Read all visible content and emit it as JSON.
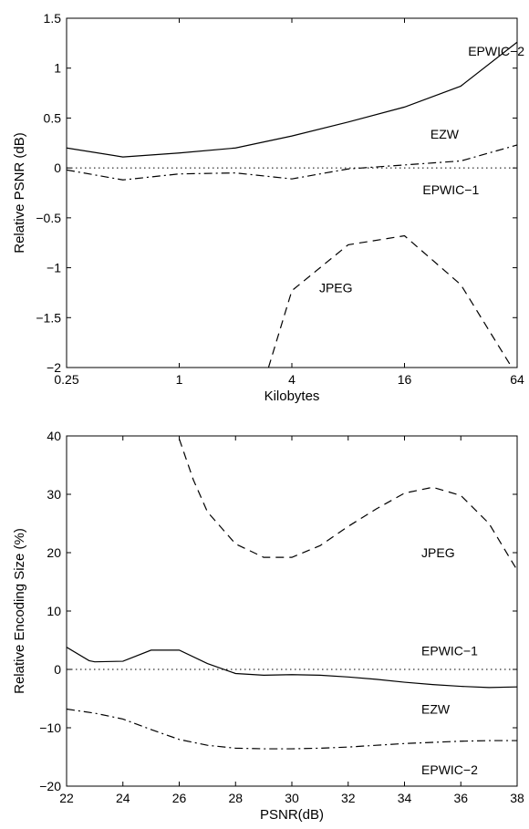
{
  "chart_data": [
    {
      "type": "line",
      "title": "",
      "xlabel": "Kilobytes",
      "ylabel": "Relative PSNR (dB)",
      "x_scale": "log2",
      "xlim": [
        0.25,
        64
      ],
      "ylim": [
        -2,
        1.5
      ],
      "x_ticks": [
        0.25,
        1,
        4,
        16,
        64
      ],
      "x_tick_labels": [
        "0.25",
        "1",
        "4",
        "16",
        "64"
      ],
      "y_ticks": [
        -2,
        -1.5,
        -1,
        -0.5,
        0,
        0.5,
        1,
        1.5
      ],
      "y_tick_labels": [
        "−2",
        "−1.5",
        "−1",
        "−0.5",
        "0",
        "0.5",
        "1",
        "1.5"
      ],
      "grid": false,
      "series": [
        {
          "name": "EPWIC−2",
          "style": "solid",
          "x": [
            0.25,
            0.5,
            1,
            2,
            4,
            8,
            16,
            32,
            64
          ],
          "y": [
            0.2,
            0.11,
            0.15,
            0.2,
            0.32,
            0.46,
            0.61,
            0.82,
            1.26
          ]
        },
        {
          "name": "EZW",
          "style": "dashdot",
          "x": [
            0.25,
            0.5,
            1,
            2,
            4,
            8,
            16,
            32,
            64
          ],
          "y": [
            -0.02,
            -0.12,
            -0.06,
            -0.05,
            -0.11,
            -0.01,
            0.03,
            0.07,
            0.23
          ]
        },
        {
          "name": "EPWIC−1",
          "style": "dotted",
          "x": [
            0.25,
            64
          ],
          "y": [
            0,
            0
          ]
        },
        {
          "name": "JPEG",
          "style": "dashed",
          "x": [
            3,
            4,
            8,
            16,
            32,
            60
          ],
          "y": [
            -2.0,
            -1.23,
            -0.77,
            -0.68,
            -1.17,
            -2.0
          ]
        }
      ],
      "series_labels": [
        {
          "text": "EPWIC−2",
          "x": 35,
          "y": 1.17
        },
        {
          "text": "EZW",
          "x": 22,
          "y": 0.34
        },
        {
          "text": "EPWIC−1",
          "x": 20,
          "y": -0.22
        },
        {
          "text": "JPEG",
          "x": 5.6,
          "y": -1.2
        }
      ]
    },
    {
      "type": "line",
      "title": "",
      "xlabel": "PSNR(dB)",
      "ylabel": "Relative Encoding Size (%)",
      "xlim": [
        22,
        38
      ],
      "ylim": [
        -20,
        40
      ],
      "x_ticks": [
        22,
        24,
        26,
        28,
        30,
        32,
        34,
        36,
        38
      ],
      "x_tick_labels": [
        "22",
        "24",
        "26",
        "28",
        "30",
        "32",
        "34",
        "36",
        "38"
      ],
      "y_ticks": [
        -20,
        -10,
        0,
        10,
        20,
        30,
        40
      ],
      "y_tick_labels": [
        "−20",
        "−10",
        "0",
        "10",
        "20",
        "30",
        "40"
      ],
      "grid": false,
      "series": [
        {
          "name": "EZW",
          "style": "solid",
          "x": [
            22,
            22.8,
            23,
            24,
            25,
            26,
            27,
            28,
            29,
            30,
            31,
            32,
            33,
            34,
            35,
            36,
            37,
            38
          ],
          "y": [
            3.8,
            1.5,
            1.3,
            1.4,
            3.3,
            3.3,
            1.0,
            -0.7,
            -1.0,
            -0.9,
            -1.0,
            -1.3,
            -1.7,
            -2.2,
            -2.6,
            -2.9,
            -3.1,
            -3.0
          ]
        },
        {
          "name": "EPWIC−1",
          "style": "dotted",
          "x": [
            22,
            38
          ],
          "y": [
            0,
            0
          ]
        },
        {
          "name": "EPWIC−2",
          "style": "dashdot",
          "x": [
            22,
            23,
            24,
            25,
            26,
            27,
            28,
            29,
            30,
            31,
            32,
            33,
            34,
            35,
            36,
            37,
            38
          ],
          "y": [
            -6.8,
            -7.5,
            -8.5,
            -10.3,
            -12.0,
            -13.0,
            -13.5,
            -13.6,
            -13.6,
            -13.5,
            -13.3,
            -13.0,
            -12.7,
            -12.5,
            -12.3,
            -12.2,
            -12.2
          ]
        },
        {
          "name": "JPEG",
          "style": "dashed",
          "x": [
            26,
            26.5,
            27,
            28,
            29,
            30,
            31,
            32,
            33,
            34,
            35,
            36,
            37,
            38
          ],
          "y": [
            39.5,
            32.5,
            27.0,
            21.5,
            19.2,
            19.2,
            21.2,
            24.5,
            27.5,
            30.2,
            31.2,
            29.8,
            25.0,
            17.0
          ]
        }
      ],
      "series_labels": [
        {
          "text": "JPEG",
          "x": 34.6,
          "y": 20
        },
        {
          "text": "EPWIC−1",
          "x": 34.6,
          "y": 3.2
        },
        {
          "text": "EZW",
          "x": 34.6,
          "y": -6.8
        },
        {
          "text": "EPWIC−2",
          "x": 34.6,
          "y": -17.2
        }
      ]
    }
  ]
}
